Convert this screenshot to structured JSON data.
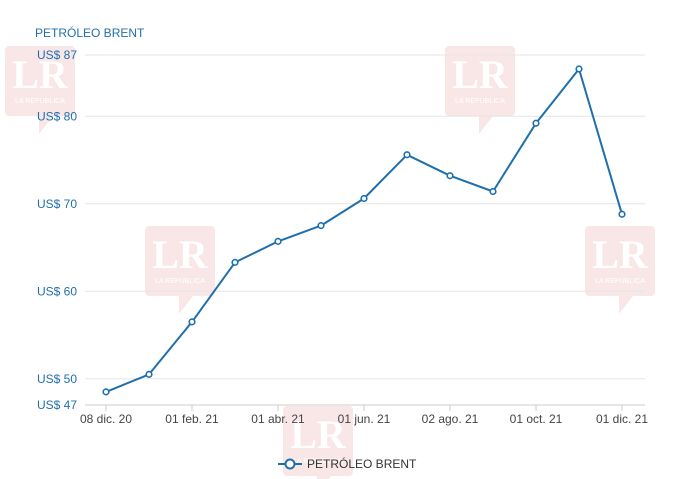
{
  "watermark": {
    "big": "LR",
    "small": "LA REPÚBLICA"
  },
  "chart_data": {
    "type": "line",
    "title": "PETRÓLEO BRENT",
    "xlabel": "",
    "ylabel": "",
    "y_prefix": "US$ ",
    "ylim": [
      47,
      87
    ],
    "yticks": [
      47,
      50,
      60,
      70,
      80,
      87
    ],
    "x_tick_labels": [
      "08 dic. 20",
      "01 feb. 21",
      "01 abr. 21",
      "01 jun. 21",
      "02 ago. 21",
      "01 oct. 21",
      "01 dic. 21"
    ],
    "x_tick_index": [
      0,
      2,
      4,
      6,
      8,
      10,
      12
    ],
    "legend": {
      "position": "bottom-center"
    },
    "color": "#1f6fad",
    "series": [
      {
        "name": "PETRÓLEO BRENT",
        "values": [
          48.5,
          50.5,
          56.5,
          63.3,
          65.7,
          67.5,
          70.6,
          75.6,
          73.2,
          71.4,
          79.2,
          85.4,
          68.8
        ]
      }
    ]
  }
}
